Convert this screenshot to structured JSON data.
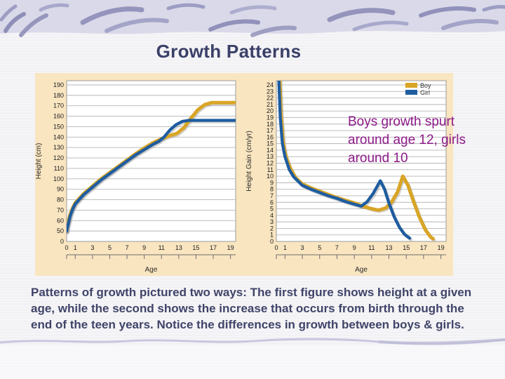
{
  "slide": {
    "title": "Growth Patterns",
    "annotation_lines": [
      "Boys growth spurt",
      "around age 12, girls",
      "around 10"
    ],
    "caption_lines": [
      "Patterns of growth pictured two ways: The first figure shows height at a given",
      "age, while the second shows the increase that occurs from birth through the",
      "end of the teen years. Notice the differences in growth between boys & girls."
    ],
    "colors": {
      "boy": "#D9A527",
      "girl": "#1E5C9F",
      "panel": "#F9E5C0",
      "title_text": "#3A4068",
      "caption_text": "#3F4469",
      "annotation_text": "#8D1B89",
      "banner": "#D9D9E9",
      "banner_stroke": "#8F8FB9",
      "wave": "#C9C7DE",
      "gridline": "#B5B5B5"
    }
  },
  "chart_data": [
    {
      "type": "line",
      "title": "",
      "xlabel": "Age",
      "ylabel": "Height (cm)",
      "xlim": [
        0,
        19.6
      ],
      "x_ticks": [
        0,
        1,
        3,
        5,
        7,
        9,
        11,
        13,
        15,
        17,
        19
      ],
      "y_ticks": [
        0,
        50,
        60,
        70,
        80,
        90,
        100,
        110,
        120,
        130,
        140,
        150,
        160,
        170,
        180,
        190
      ],
      "y_axis_break": true,
      "grid": "horizontal",
      "legend": "none",
      "series": [
        {
          "name": "Boy",
          "color": "#D9A527",
          "points": [
            [
              0,
              48
            ],
            [
              0.15,
              57
            ],
            [
              0.4,
              66
            ],
            [
              0.7,
              72
            ],
            [
              1,
              77
            ],
            [
              1.5,
              81.5
            ],
            [
              2,
              86
            ],
            [
              3,
              93
            ],
            [
              4,
              100
            ],
            [
              5,
              106
            ],
            [
              6,
              112
            ],
            [
              7,
              118
            ],
            [
              8,
              124
            ],
            [
              9,
              129.5
            ],
            [
              10,
              134.5
            ],
            [
              11,
              138.5
            ],
            [
              12,
              141.5
            ],
            [
              12.8,
              143.5
            ],
            [
              13.6,
              149
            ],
            [
              14.4,
              158
            ],
            [
              15.2,
              166
            ],
            [
              16,
              171
            ],
            [
              16.8,
              173
            ],
            [
              19.6,
              173
            ]
          ]
        },
        {
          "name": "Girl",
          "color": "#1E5C9F",
          "points": [
            [
              0,
              48
            ],
            [
              0.15,
              55
            ],
            [
              0.4,
              64
            ],
            [
              0.7,
              71
            ],
            [
              1,
              76
            ],
            [
              1.5,
              80.5
            ],
            [
              2,
              85
            ],
            [
              3,
              92
            ],
            [
              4,
              99
            ],
            [
              5,
              105
            ],
            [
              6,
              111
            ],
            [
              7,
              117
            ],
            [
              8,
              123
            ],
            [
              9,
              128
            ],
            [
              10,
              133
            ],
            [
              10.7,
              136
            ],
            [
              11.3,
              140
            ],
            [
              12,
              147
            ],
            [
              12.7,
              152
            ],
            [
              13.4,
              155
            ],
            [
              14.2,
              156
            ],
            [
              19.6,
              156
            ]
          ]
        }
      ]
    },
    {
      "type": "line",
      "title": "",
      "xlabel": "Age",
      "ylabel": "Height Gain (cm/yr)",
      "xlim": [
        0,
        19.6
      ],
      "x_ticks": [
        0,
        1,
        3,
        5,
        7,
        9,
        11,
        13,
        15,
        17,
        19
      ],
      "y_ticks": [
        0,
        1,
        2,
        3,
        4,
        5,
        6,
        7,
        8,
        9,
        10,
        11,
        12,
        13,
        14,
        15,
        16,
        17,
        18,
        19,
        20,
        21,
        22,
        23,
        24
      ],
      "y_axis_break": false,
      "grid": "horizontal",
      "legend": "top-right",
      "series": [
        {
          "name": "Boy",
          "color": "#D9A527",
          "points": [
            [
              0.35,
              26
            ],
            [
              0.55,
              19
            ],
            [
              0.8,
              15
            ],
            [
              1.1,
              13
            ],
            [
              1.6,
              11.2
            ],
            [
              2.2,
              9.8
            ],
            [
              3,
              8.8
            ],
            [
              4,
              8.2
            ],
            [
              5,
              7.7
            ],
            [
              6,
              7.2
            ],
            [
              7,
              6.7
            ],
            [
              8,
              6.3
            ],
            [
              9,
              5.9
            ],
            [
              10,
              5.4
            ],
            [
              11,
              5.0
            ],
            [
              11.8,
              4.8
            ],
            [
              12.6,
              5.1
            ],
            [
              13.3,
              6.0
            ],
            [
              14,
              7.6
            ],
            [
              14.6,
              10
            ],
            [
              15.2,
              8.6
            ],
            [
              15.8,
              6.3
            ],
            [
              16.5,
              3.8
            ],
            [
              17.2,
              1.8
            ],
            [
              17.8,
              0.7
            ],
            [
              18.1,
              0.4
            ]
          ]
        },
        {
          "name": "Girl",
          "color": "#1E5C9F",
          "points": [
            [
              0.25,
              26
            ],
            [
              0.45,
              19
            ],
            [
              0.7,
              15
            ],
            [
              1,
              13
            ],
            [
              1.5,
              11
            ],
            [
              2,
              9.9
            ],
            [
              3,
              8.6
            ],
            [
              4,
              8.0
            ],
            [
              5,
              7.5
            ],
            [
              6,
              7.0
            ],
            [
              7,
              6.6
            ],
            [
              8,
              6.1
            ],
            [
              9,
              5.7
            ],
            [
              9.8,
              5.4
            ],
            [
              10.5,
              6.1
            ],
            [
              11.2,
              7.4
            ],
            [
              12,
              9.3
            ],
            [
              12.5,
              8.0
            ],
            [
              13,
              5.9
            ],
            [
              13.6,
              3.8
            ],
            [
              14.2,
              2.2
            ],
            [
              14.8,
              1.1
            ],
            [
              15.4,
              0.5
            ]
          ]
        }
      ]
    }
  ]
}
